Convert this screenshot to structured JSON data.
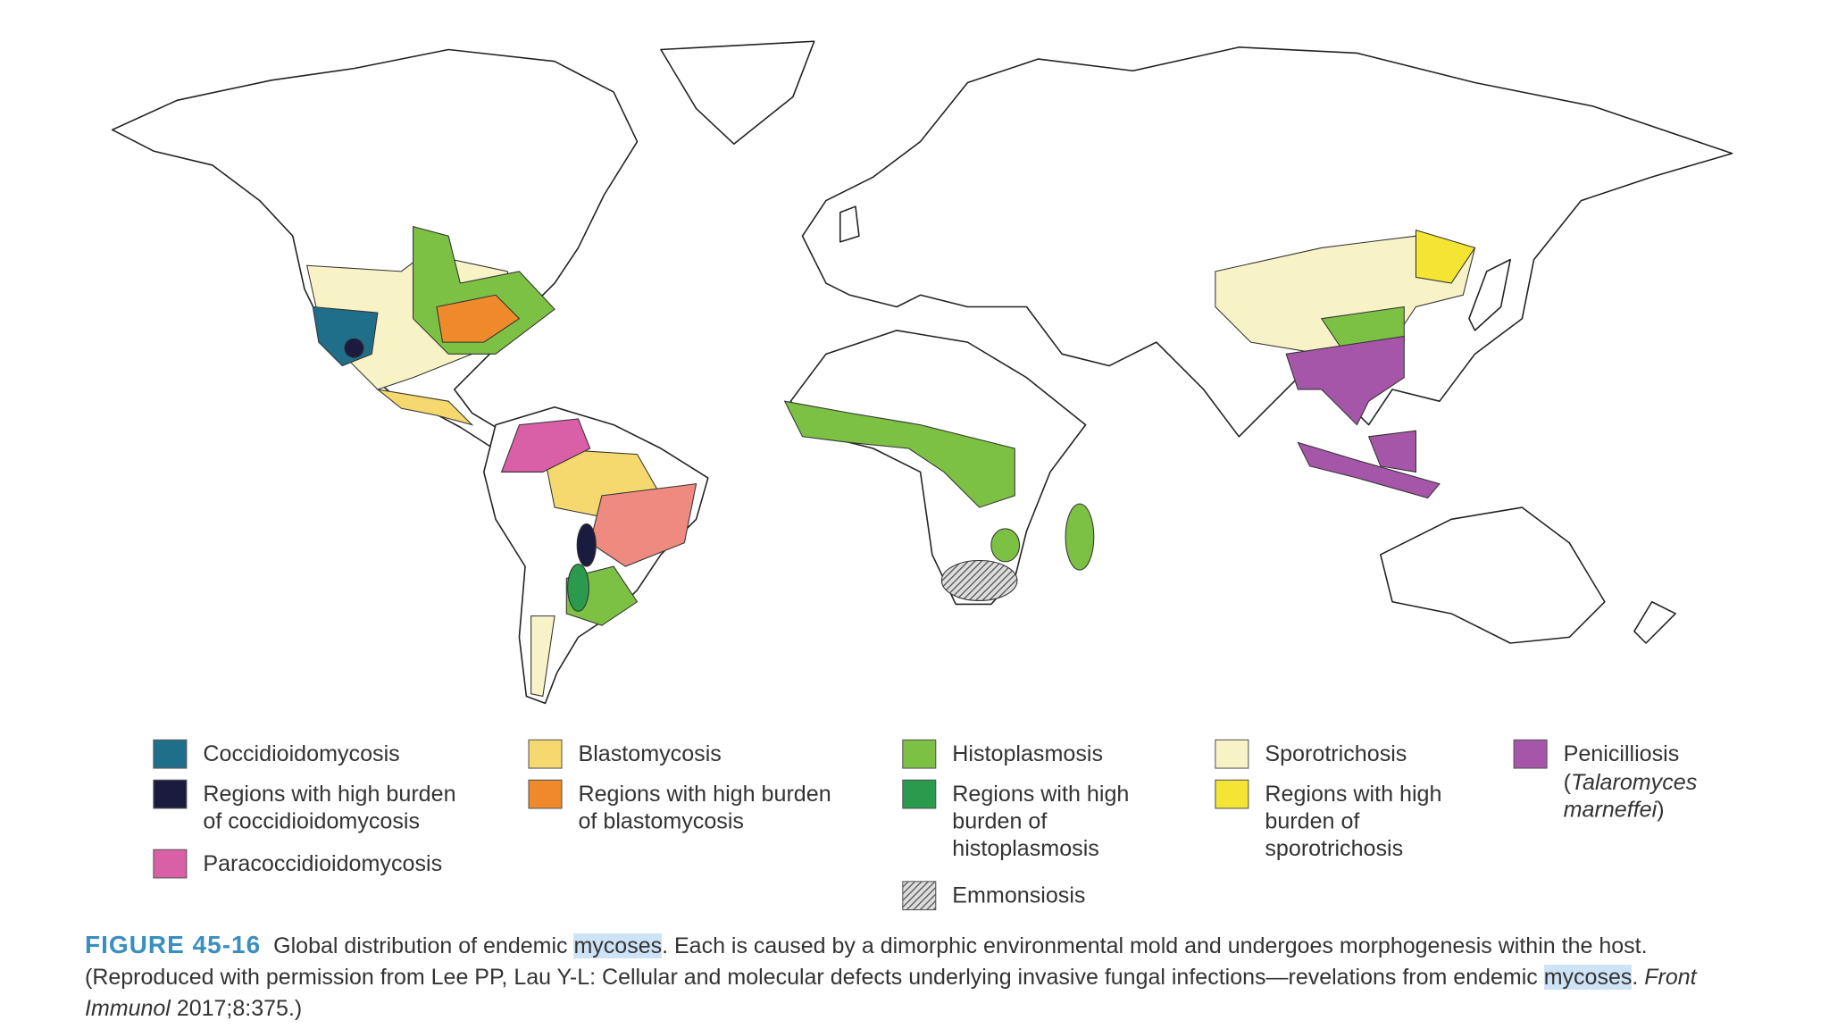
{
  "legend": [
    {
      "label": [
        "Coccidioidomycosis"
      ],
      "color": "#1f6f8b"
    },
    {
      "label": [
        "Regions with high burden",
        "of coccidioidomycosis"
      ],
      "color": "#1b1b40"
    },
    {
      "label": [
        "Paracoccidioidomycosis"
      ],
      "color": "#d95fa7"
    },
    {
      "label": [
        "Blastomycosis"
      ],
      "color": "#f6d96e"
    },
    {
      "label": [
        "Regions with high burden",
        "of blastomycosis"
      ],
      "color": "#ee8a2b"
    },
    {
      "label": [
        "Histoplasmosis"
      ],
      "color": "#7cc143"
    },
    {
      "label": [
        "Regions with high",
        "burden of",
        "histoplasmosis"
      ],
      "color": "#2a9a4c"
    },
    {
      "label": [
        "Emmonsiosis"
      ],
      "color": "#8c8c8c",
      "pattern": true
    },
    {
      "label": [
        "Sporotrichosis"
      ],
      "color": "#f8f3c6"
    },
    {
      "label": [
        "Regions with high",
        "burden of",
        "sporotrichosis"
      ],
      "color": "#f4e534"
    },
    {
      "label": [
        "Penicilliosis"
      ],
      "note": [
        "(",
        "Talaromyces",
        "marneffei",
        ")"
      ],
      "color": "#a656a8"
    }
  ],
  "caption": {
    "label": "FIGURE 45-16",
    "segments": [
      {
        "text": "Global distribution of endemic "
      },
      {
        "text": "mycoses",
        "highlight": true
      },
      {
        "text": ". Each is caused by a dimorphic environmental mold and undergoes morphogenesis within the host. (Reproduced with permission from Lee PP, Lau Y-L: Cellular and molecular defects underlying invasive fungal infections—revelations from endemic "
      },
      {
        "text": "mycoses",
        "highlight": true
      },
      {
        "text": ". "
      },
      {
        "text": "Front Immunol",
        "italic": true
      },
      {
        "text": " 2017;8:375.)"
      }
    ]
  }
}
